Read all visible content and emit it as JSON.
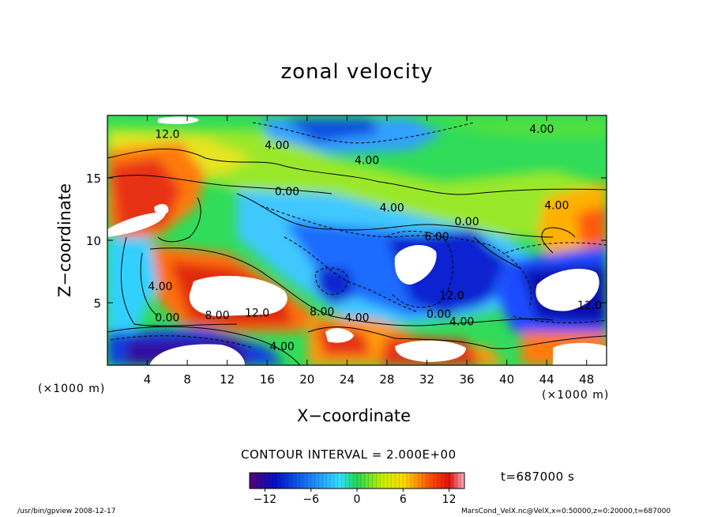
{
  "chart_data": {
    "type": "heatmap",
    "title": "zonal velocity",
    "xlabel": "X−coordinate",
    "ylabel": "Z−coordinate",
    "x_unit": "(×1000 m)",
    "y_unit": "(×1000 m)",
    "x_ticks": [
      4,
      8,
      12,
      16,
      20,
      24,
      28,
      32,
      36,
      40,
      44,
      48
    ],
    "y_ticks": [
      5,
      10,
      15
    ],
    "xlim": [
      0,
      50
    ],
    "ylim": [
      0,
      20
    ],
    "colorbar_ticks": [
      "−12",
      "−6",
      "0",
      "6",
      "12"
    ],
    "colorbar_range": [
      -14,
      14
    ],
    "contour_interval_label": "CONTOUR INTERVAL = 2.000E+00",
    "time_label": "t=687000 s",
    "contour_labels": [
      {
        "text": "12.0",
        "x": 6,
        "y": 18.2
      },
      {
        "text": "4.00",
        "x": 17,
        "y": 17.3
      },
      {
        "text": "4.00",
        "x": 26,
        "y": 16.1
      },
      {
        "text": "4.00",
        "x": 43.5,
        "y": 18.6
      },
      {
        "text": "0.00",
        "x": 18,
        "y": 13.6
      },
      {
        "text": "4.00",
        "x": 28.5,
        "y": 12.3
      },
      {
        "text": "0.00",
        "x": 36,
        "y": 11.2
      },
      {
        "text": "4.00",
        "x": 45,
        "y": 12.5
      },
      {
        "text": "6.00",
        "x": 33,
        "y": 10
      },
      {
        "text": "4.00",
        "x": 5.3,
        "y": 6
      },
      {
        "text": "0.00",
        "x": 6,
        "y": 3.5
      },
      {
        "text": "8.00",
        "x": 11,
        "y": 3.7
      },
      {
        "text": "12.0",
        "x": 15,
        "y": 3.9
      },
      {
        "text": "8.00",
        "x": 21.5,
        "y": 4
      },
      {
        "text": "4.00",
        "x": 25,
        "y": 3.5
      },
      {
        "text": "12.0",
        "x": 34.5,
        "y": 5.3
      },
      {
        "text": "0.00",
        "x": 33.2,
        "y": 3.8
      },
      {
        "text": "4.00",
        "x": 35.5,
        "y": 3.2
      },
      {
        "text": "12.0",
        "x": 48.3,
        "y": 4.5
      },
      {
        "text": "4.00",
        "x": 17.5,
        "y": 1.2
      }
    ]
  },
  "footer": {
    "left": "/usr/bin/gpview   2008-12-17",
    "right": "MarsCond_VelX.nc@VelX,x=0:50000,z=0:20000,t=687000"
  }
}
